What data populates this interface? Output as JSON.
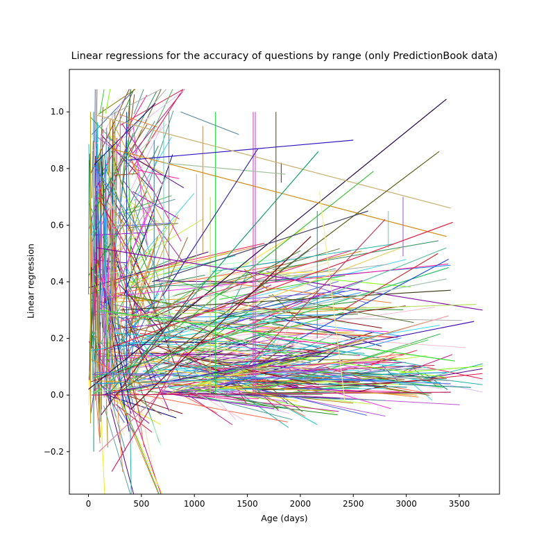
{
  "chart_data": {
    "type": "line",
    "title": "Linear regressions for the accuracy of questions by range (only PredictionBook data)",
    "xlabel": "Age (days)",
    "ylabel": "Linear regression",
    "xlim": [
      -180,
      3880
    ],
    "ylim": [
      -0.35,
      1.15
    ],
    "xticks": [
      0,
      500,
      1000,
      1500,
      2000,
      2500,
      3000,
      3500
    ],
    "xtick_labels": [
      "0",
      "500",
      "1000",
      "1500",
      "2000",
      "2500",
      "3000",
      "3500"
    ],
    "yticks": [
      -0.2,
      0.0,
      0.2,
      0.4,
      0.6,
      0.8,
      1.0
    ],
    "ytick_labels": [
      "−0.2",
      "0.0",
      "0.2",
      "0.4",
      "0.6",
      "0.8",
      "1.0"
    ],
    "grid": false,
    "legend": "none",
    "series": [
      {
        "x": [
          1,
          3380
        ],
        "y": [
          0.02,
          1.045
        ],
        "color": "#2a0a4a"
      },
      {
        "x": [
          380,
          2500
        ],
        "y": [
          0.83,
          0.9
        ],
        "color": "#3018c0"
      },
      {
        "x": [
          60,
          3420
        ],
        "y": [
          0.99,
          0.66
        ],
        "color": "#c8b070"
      },
      {
        "x": [
          210,
          3380
        ],
        "y": [
          0.87,
          0.56
        ],
        "color": "#d08a10"
      },
      {
        "x": [
          260,
          3310
        ],
        "y": [
          0.0,
          0.86
        ],
        "color": "#5a5a18"
      },
      {
        "x": [
          150,
          3440
        ],
        "y": [
          0.16,
          0.61
        ],
        "color": "#e02040"
      },
      {
        "x": [
          80,
          3720
        ],
        "y": [
          0.52,
          0.3
        ],
        "color": "#8010a0"
      },
      {
        "x": [
          120,
          3640
        ],
        "y": [
          0.0,
          0.26
        ],
        "color": "#4010b0"
      },
      {
        "x": [
          200,
          3660
        ],
        "y": [
          0.28,
          0.32
        ],
        "color": "#b8e060"
      },
      {
        "x": [
          300,
          3420
        ],
        "y": [
          0.3,
          0.37
        ],
        "color": "#404020"
      },
      {
        "x": [
          100,
          3460
        ],
        "y": [
          0.3,
          0.12
        ],
        "color": "#30e030"
      },
      {
        "x": [
          50,
          3400
        ],
        "y": [
          0.06,
          0.45
        ],
        "color": "#20c060"
      },
      {
        "x": [
          900,
          3380
        ],
        "y": [
          0.15,
          0.52
        ],
        "color": "#60c0a0"
      },
      {
        "x": [
          40,
          2690
        ],
        "y": [
          0.0,
          0.79
        ],
        "color": "#40c040"
      },
      {
        "x": [
          600,
          2640
        ],
        "y": [
          0.4,
          0.65
        ],
        "color": "#404060"
      },
      {
        "x": [
          180,
          2170
        ],
        "y": [
          0.0,
          0.86
        ],
        "color": "#10a070"
      },
      {
        "x": [
          1400,
          2950
        ],
        "y": [
          0.3,
          0.52
        ],
        "color": "#e0d060"
      },
      {
        "x": [
          2000,
          3400
        ],
        "y": [
          0.2,
          0.48
        ],
        "color": "#2050e0"
      },
      {
        "x": [
          500,
          3380
        ],
        "y": [
          0.2,
          0.41
        ],
        "color": "#a0c0b0"
      },
      {
        "x": [
          250,
          3450
        ],
        "y": [
          0.12,
          0.05
        ],
        "color": "#80a0a0"
      },
      {
        "x": [
          30,
          3420
        ],
        "y": [
          0.0,
          0.01
        ],
        "color": "#c02060"
      },
      {
        "x": [
          60,
          3380
        ],
        "y": [
          0.04,
          0.08
        ],
        "color": "#20a0d0"
      },
      {
        "x": [
          100,
          3100
        ],
        "y": [
          0.05,
          0.0
        ],
        "color": "#e0a020"
      },
      {
        "x": [
          70,
          3420
        ],
        "y": [
          0.08,
          0.04
        ],
        "color": "#6080e0"
      },
      {
        "x": [
          300,
          2480
        ],
        "y": [
          0.26,
          0.51
        ],
        "color": "#e04080"
      },
      {
        "x": [
          700,
          1860
        ],
        "y": [
          0.82,
          0.78
        ],
        "color": "#a0c0a0"
      },
      {
        "x": [
          870,
          1420
        ],
        "y": [
          1.0,
          0.92
        ],
        "color": "#6090a0"
      },
      {
        "x": [
          700,
          1600
        ],
        "y": [
          0.35,
          0.87
        ],
        "color": "#3028b0"
      },
      {
        "x": [
          120,
          1000
        ],
        "y": [
          -0.07,
          0.37
        ],
        "color": "#802040"
      },
      {
        "x": [
          100,
          800
        ],
        "y": [
          -0.2,
          0.05
        ],
        "color": "#e080a0"
      },
      {
        "x": [
          220,
          900
        ],
        "y": [
          -0.27,
          0.15
        ],
        "color": "#e02060"
      },
      {
        "x": [
          400,
          2100
        ],
        "y": [
          -0.05,
          0.56
        ],
        "color": "#800000"
      },
      {
        "x": [
          2180,
          2420
        ],
        "y": [
          0.72,
          -0.02
        ],
        "color": "#f8f090"
      },
      {
        "x": [
          1500,
          2800
        ],
        "y": [
          0.1,
          0.62
        ],
        "color": "#c04060"
      },
      {
        "x": [
          2200,
          3400
        ],
        "y": [
          0.15,
          0.28
        ],
        "color": "#f0a0a0"
      },
      {
        "x": [
          2400,
          3300
        ],
        "y": [
          0.3,
          0.5
        ],
        "color": "#d03030"
      }
    ],
    "vertical_segments": [
      {
        "x": 1555,
        "y": [
          0.0,
          1.0
        ],
        "color": "#e040e0"
      },
      {
        "x": 1575,
        "y": [
          0.0,
          1.0
        ],
        "color": "#e040e0"
      },
      {
        "x": 1200,
        "y": [
          0.0,
          1.0
        ],
        "color": "#10e030"
      },
      {
        "x": 760,
        "y": [
          0.1,
          1.0
        ],
        "color": "#4090e0"
      },
      {
        "x": 710,
        "y": [
          0.2,
          0.97
        ],
        "color": "#60e0c0"
      },
      {
        "x": 1770,
        "y": [
          0.4,
          1.0
        ],
        "color": "#605010"
      },
      {
        "x": 1080,
        "y": [
          0.5,
          0.95
        ],
        "color": "#d09060"
      },
      {
        "x": 2160,
        "y": [
          0.2,
          0.65
        ],
        "color": "#20a0a0"
      },
      {
        "x": 2830,
        "y": [
          0.52,
          0.65
        ],
        "color": "#60e0a0"
      },
      {
        "x": 2970,
        "y": [
          0.49,
          0.7
        ],
        "color": "#a060e0"
      },
      {
        "x": 1820,
        "y": [
          0.75,
          0.82
        ],
        "color": "#a02040"
      },
      {
        "x": 1020,
        "y": [
          0.3,
          0.78
        ],
        "color": "#d0a0e0"
      },
      {
        "x": 1150,
        "y": [
          0.0,
          0.7
        ],
        "color": "#c0e040"
      },
      {
        "x": 620,
        "y": [
          0.3,
          0.9
        ],
        "color": "#4080a0"
      },
      {
        "x": 250,
        "y": [
          0.2,
          1.0
        ],
        "color": "#60a060"
      },
      {
        "x": 300,
        "y": [
          0.4,
          1.0
        ],
        "color": "#e060a0"
      },
      {
        "x": 360,
        "y": [
          0.1,
          1.0
        ],
        "color": "#2040d0"
      },
      {
        "x": 20,
        "y": [
          -0.1,
          1.0
        ],
        "color": "#c0a020"
      },
      {
        "x": 50,
        "y": [
          -0.2,
          1.0
        ],
        "color": "#20a080"
      }
    ],
    "cluster": {
      "description_free": true,
      "count": 700,
      "seed": 7,
      "colors": [
        "#e6194b",
        "#3cb44b",
        "#ffe119",
        "#4363d8",
        "#f58231",
        "#911eb4",
        "#42d4f4",
        "#f032e6",
        "#bfef45",
        "#fabed4",
        "#469990",
        "#dcbeff",
        "#9a6324",
        "#800000",
        "#aaffc3",
        "#808000",
        "#ffd8b1",
        "#000075",
        "#a9a9a9",
        "#1e90ff",
        "#2e8b57",
        "#ff1493",
        "#7cfc00",
        "#8b4513",
        "#00ced1",
        "#9400d3",
        "#ff6347",
        "#4b0082",
        "#32cd32",
        "#b8860b",
        "#20b2aa",
        "#dc143c",
        "#6a5acd",
        "#228b22",
        "#c71585",
        "#008080",
        "#556b2f",
        "#daa520",
        "#ba55d3",
        "#5f9ea0"
      ]
    }
  }
}
